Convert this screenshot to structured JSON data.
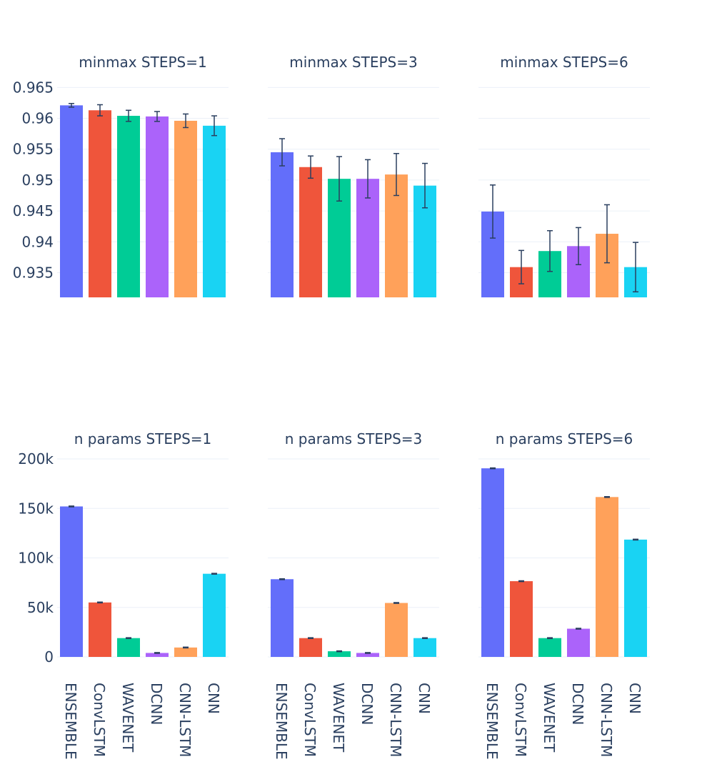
{
  "colors": {
    "ENSEMBLE": "#636efa",
    "ConvLSTM": "#ef553b",
    "WAVENET": "#00cc96",
    "DCNN": "#ab63fa",
    "CNN-LSTM": "#ffa15a",
    "CNN": "#19d3f3",
    "text": "#2a3f5f",
    "grid": "#ebf0f8"
  },
  "chart_data": [
    {
      "type": "bar",
      "title": "minmax STEPS=1",
      "row": 0,
      "col": 0,
      "categories": [
        "ENSEMBLE",
        "ConvLSTM",
        "WAVENET",
        "DCNN",
        "CNN-LSTM",
        "CNN"
      ],
      "values": [
        0.9621,
        0.9613,
        0.9604,
        0.9603,
        0.9596,
        0.9588
      ],
      "errors": [
        0.0003,
        0.0009,
        0.0009,
        0.0008,
        0.0011,
        0.0016
      ],
      "ylim": [
        0.931,
        0.9655
      ],
      "yticks": [
        0.935,
        0.94,
        0.945,
        0.95,
        0.955,
        0.96,
        0.965
      ],
      "ytick_labels": [
        "0.935",
        "0.94",
        "0.945",
        "0.95",
        "0.955",
        "0.96",
        "0.965"
      ]
    },
    {
      "type": "bar",
      "title": "minmax STEPS=3",
      "row": 0,
      "col": 1,
      "categories": [
        "ENSEMBLE",
        "ConvLSTM",
        "WAVENET",
        "DCNN",
        "CNN-LSTM",
        "CNN"
      ],
      "values": [
        0.9545,
        0.9521,
        0.9502,
        0.9502,
        0.9509,
        0.9491
      ],
      "errors": [
        0.0022,
        0.0018,
        0.0036,
        0.0031,
        0.0034,
        0.0036
      ],
      "ylim": [
        0.931,
        0.9655
      ],
      "yticks": [
        0.935,
        0.94,
        0.945,
        0.95,
        0.955,
        0.96,
        0.965
      ],
      "ytick_labels": []
    },
    {
      "type": "bar",
      "title": "minmax STEPS=6",
      "row": 0,
      "col": 2,
      "categories": [
        "ENSEMBLE",
        "ConvLSTM",
        "WAVENET",
        "DCNN",
        "CNN-LSTM",
        "CNN"
      ],
      "values": [
        0.9449,
        0.9359,
        0.9385,
        0.9393,
        0.9413,
        0.9359
      ],
      "errors": [
        0.0043,
        0.0027,
        0.0033,
        0.003,
        0.0047,
        0.004
      ],
      "ylim": [
        0.931,
        0.9655
      ],
      "yticks": [
        0.935,
        0.94,
        0.945,
        0.95,
        0.955,
        0.96,
        0.965
      ],
      "ytick_labels": []
    },
    {
      "type": "bar",
      "title": "n params STEPS=1",
      "row": 1,
      "col": 0,
      "categories": [
        "ENSEMBLE",
        "ConvLSTM",
        "WAVENET",
        "DCNN",
        "CNN-LSTM",
        "CNN"
      ],
      "values": [
        152000,
        55000,
        19000,
        4000,
        9500,
        84000
      ],
      "errors": [
        400,
        400,
        400,
        400,
        400,
        400
      ],
      "ylim": [
        0,
        200000
      ],
      "yticks": [
        0,
        50000,
        100000,
        150000,
        200000
      ],
      "ytick_labels": [
        "0",
        "50k",
        "100k",
        "150k",
        "200k"
      ],
      "xtick_labels": [
        "ENSEMBLE",
        "ConvLSTM",
        "WAVENET",
        "DCNN",
        "CNN-LSTM",
        "CNN"
      ]
    },
    {
      "type": "bar",
      "title": "n params STEPS=3",
      "row": 1,
      "col": 1,
      "categories": [
        "ENSEMBLE",
        "ConvLSTM",
        "WAVENET",
        "DCNN",
        "CNN-LSTM",
        "CNN"
      ],
      "values": [
        78500,
        19000,
        5700,
        4000,
        54500,
        19000
      ],
      "errors": [
        400,
        400,
        400,
        400,
        400,
        400
      ],
      "ylim": [
        0,
        200000
      ],
      "yticks": [
        0,
        50000,
        100000,
        150000,
        200000
      ],
      "ytick_labels": [],
      "xtick_labels": [
        "ENSEMBLE",
        "ConvLSTM",
        "WAVENET",
        "DCNN",
        "CNN-LSTM",
        "CNN"
      ]
    },
    {
      "type": "bar",
      "title": "n params STEPS=6",
      "row": 1,
      "col": 2,
      "categories": [
        "ENSEMBLE",
        "ConvLSTM",
        "WAVENET",
        "DCNN",
        "CNN-LSTM",
        "CNN"
      ],
      "values": [
        190500,
        76500,
        19000,
        28500,
        161500,
        118500
      ],
      "errors": [
        400,
        400,
        400,
        400,
        400,
        400
      ],
      "ylim": [
        0,
        200000
      ],
      "yticks": [
        0,
        50000,
        100000,
        150000,
        200000
      ],
      "ytick_labels": [],
      "xtick_labels": [
        "ENSEMBLE",
        "ConvLSTM",
        "WAVENET",
        "DCNN",
        "CNN-LSTM",
        "CNN"
      ]
    }
  ]
}
